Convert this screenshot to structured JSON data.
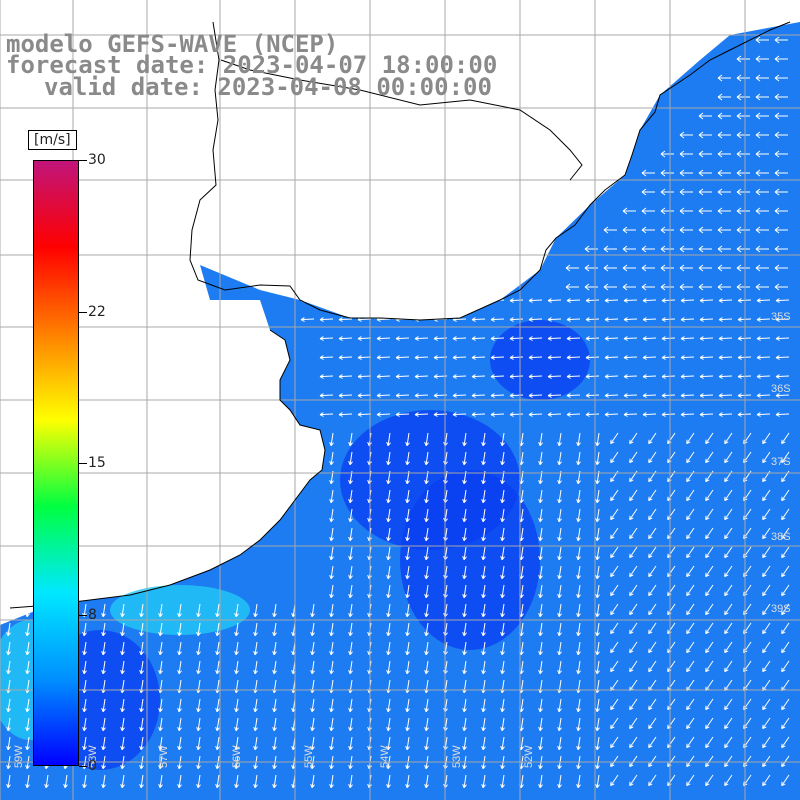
{
  "title": {
    "line1": "modelo GEFS-WAVE (NCEP)",
    "line2": "forecast date: 2023-04-07 18:00:00",
    "line3": "valid date: 2023-04-08 00:00:00"
  },
  "colorbar": {
    "unit": "[m/s]",
    "min": 0,
    "max": 30,
    "ticks": [
      {
        "value": 30,
        "label": "30"
      },
      {
        "value": 22.5,
        "label": "22"
      },
      {
        "value": 15,
        "label": "15"
      },
      {
        "value": 7.5,
        "label": "8"
      },
      {
        "value": 0,
        "label": "0"
      }
    ],
    "stops": [
      "#0000ff",
      "#0090ff",
      "#00e8ff",
      "#00ff40",
      "#ffff00",
      "#ff8000",
      "#ff0000",
      "#c0147a"
    ]
  },
  "map": {
    "ocean_color": "#1d7cf2",
    "land_color": "#ffffff",
    "grid_color": "#a8a8a8",
    "vector_color": "#ffffff",
    "lat_labels": [
      "35S",
      "36S",
      "37S",
      "38S",
      "39S"
    ],
    "lon_labels": [
      "59W",
      "58W",
      "57W",
      "56W",
      "55W",
      "54W",
      "53W",
      "52W"
    ]
  }
}
